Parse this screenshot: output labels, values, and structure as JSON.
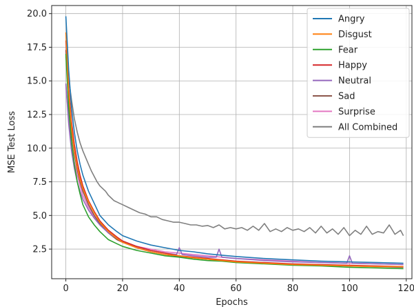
{
  "chart_data": {
    "type": "line",
    "xlabel": "Epochs",
    "ylabel": "MSE Test Loss",
    "xlim": [
      -5,
      122
    ],
    "ylim": [
      0.3,
      20.6
    ],
    "xticks": [
      0,
      20,
      40,
      60,
      80,
      100,
      120
    ],
    "yticks": [
      2.5,
      5.0,
      7.5,
      10.0,
      12.5,
      15.0,
      17.5,
      20.0
    ],
    "ytick_labels": [
      "2.5",
      "5.0",
      "7.5",
      "10.0",
      "12.5",
      "15.0",
      "17.5",
      "20.0"
    ],
    "grid": true,
    "legend_position": "top-right",
    "series": [
      {
        "name": "Angry",
        "color": "#1f77b4",
        "x": [
          0,
          1,
          2,
          3,
          4,
          5,
          6,
          8,
          10,
          12,
          15,
          18,
          20,
          25,
          30,
          35,
          40,
          45,
          50,
          55,
          60,
          70,
          80,
          90,
          100,
          110,
          119
        ],
        "y": [
          19.8,
          15.8,
          13.0,
          11.2,
          9.8,
          8.8,
          8.0,
          6.8,
          5.9,
          5.0,
          4.3,
          3.8,
          3.5,
          3.1,
          2.8,
          2.6,
          2.4,
          2.3,
          2.15,
          2.05,
          1.95,
          1.8,
          1.7,
          1.6,
          1.55,
          1.5,
          1.45
        ]
      },
      {
        "name": "Disgust",
        "color": "#ff7f0e",
        "x": [
          0,
          1,
          2,
          3,
          4,
          5,
          6,
          8,
          10,
          12,
          15,
          18,
          20,
          25,
          30,
          35,
          40,
          45,
          50,
          55,
          60,
          70,
          80,
          90,
          100,
          110,
          119
        ],
        "y": [
          18.6,
          14.2,
          11.5,
          9.8,
          8.6,
          7.7,
          7.0,
          6.0,
          5.2,
          4.5,
          3.8,
          3.3,
          3.0,
          2.6,
          2.3,
          2.1,
          2.0,
          1.85,
          1.75,
          1.65,
          1.55,
          1.45,
          1.35,
          1.3,
          1.25,
          1.2,
          1.2
        ]
      },
      {
        "name": "Fear",
        "color": "#2ca02c",
        "x": [
          0,
          1,
          2,
          3,
          4,
          5,
          6,
          8,
          10,
          12,
          15,
          18,
          20,
          25,
          30,
          35,
          40,
          45,
          50,
          55,
          60,
          70,
          80,
          90,
          100,
          110,
          119
        ],
        "y": [
          17.0,
          13.0,
          10.5,
          8.8,
          7.5,
          6.6,
          5.8,
          4.9,
          4.3,
          3.8,
          3.2,
          2.9,
          2.7,
          2.4,
          2.2,
          2.0,
          1.9,
          1.75,
          1.65,
          1.6,
          1.5,
          1.4,
          1.3,
          1.25,
          1.15,
          1.1,
          1.05
        ]
      },
      {
        "name": "Happy",
        "color": "#d62728",
        "x": [
          0,
          1,
          2,
          3,
          4,
          5,
          6,
          8,
          10,
          12,
          15,
          18,
          20,
          25,
          30,
          35,
          40,
          45,
          50,
          55,
          60,
          70,
          80,
          90,
          100,
          110,
          119
        ],
        "y": [
          18.0,
          14.5,
          12.0,
          10.3,
          9.0,
          8.0,
          7.2,
          6.1,
          5.3,
          4.6,
          3.9,
          3.4,
          3.1,
          2.7,
          2.4,
          2.2,
          2.0,
          1.9,
          1.8,
          1.7,
          1.6,
          1.5,
          1.4,
          1.35,
          1.3,
          1.25,
          1.2
        ]
      },
      {
        "name": "Neutral",
        "color": "#9467bd",
        "x": [
          0,
          1,
          2,
          3,
          4,
          5,
          6,
          8,
          10,
          12,
          15,
          18,
          20,
          25,
          30,
          35,
          39,
          40,
          41,
          45,
          50,
          53,
          54,
          55,
          60,
          70,
          80,
          90,
          99,
          100,
          101,
          110,
          119
        ],
        "y": [
          14.8,
          11.8,
          9.8,
          8.5,
          7.5,
          6.8,
          6.2,
          5.4,
          4.8,
          4.3,
          3.7,
          3.3,
          3.1,
          2.7,
          2.4,
          2.2,
          2.1,
          2.6,
          2.1,
          2.0,
          1.9,
          1.9,
          2.5,
          1.9,
          1.8,
          1.65,
          1.55,
          1.5,
          1.45,
          2.0,
          1.45,
          1.4,
          1.35
        ]
      },
      {
        "name": "Sad",
        "color": "#8c564b",
        "x": [
          0,
          1,
          2,
          3,
          4,
          5,
          6,
          8,
          10,
          12,
          15,
          18,
          20,
          25,
          30,
          35,
          40,
          45,
          50,
          55,
          60,
          70,
          80,
          90,
          100,
          110,
          119
        ],
        "y": [
          17.3,
          13.6,
          11.2,
          9.6,
          8.4,
          7.5,
          6.8,
          5.8,
          5.0,
          4.4,
          3.7,
          3.2,
          3.0,
          2.6,
          2.3,
          2.1,
          1.95,
          1.85,
          1.75,
          1.65,
          1.55,
          1.45,
          1.35,
          1.3,
          1.25,
          1.2,
          1.15
        ]
      },
      {
        "name": "Surprise",
        "color": "#e377c2",
        "x": [
          0,
          1,
          2,
          3,
          4,
          5,
          6,
          8,
          10,
          12,
          15,
          18,
          20,
          25,
          30,
          35,
          40,
          45,
          50,
          55,
          60,
          70,
          80,
          90,
          100,
          110,
          119
        ],
        "y": [
          14.7,
          12.2,
          10.4,
          9.0,
          8.0,
          7.2,
          6.5,
          5.6,
          4.9,
          4.3,
          3.7,
          3.3,
          3.0,
          2.7,
          2.5,
          2.3,
          2.2,
          2.1,
          2.0,
          1.9,
          1.8,
          1.7,
          1.6,
          1.5,
          1.45,
          1.4,
          1.35
        ]
      },
      {
        "name": "All Combined",
        "color": "#7f7f7f",
        "x": [
          0,
          1,
          2,
          3,
          4,
          5,
          6,
          7,
          8,
          9,
          10,
          11,
          12,
          13,
          14,
          15,
          16,
          17,
          18,
          19,
          20,
          22,
          24,
          26,
          28,
          30,
          32,
          34,
          36,
          38,
          40,
          42,
          44,
          46,
          48,
          50,
          52,
          54,
          56,
          58,
          60,
          62,
          64,
          66,
          68,
          70,
          72,
          74,
          76,
          78,
          80,
          82,
          84,
          86,
          88,
          90,
          92,
          94,
          96,
          98,
          100,
          102,
          104,
          106,
          108,
          110,
          112,
          114,
          116,
          118,
          119
        ],
        "y": [
          16.8,
          15.2,
          13.6,
          12.2,
          11.2,
          10.4,
          9.8,
          9.3,
          8.8,
          8.3,
          7.9,
          7.5,
          7.2,
          7.0,
          6.8,
          6.5,
          6.3,
          6.1,
          6.0,
          5.9,
          5.8,
          5.6,
          5.4,
          5.2,
          5.1,
          4.9,
          4.9,
          4.7,
          4.6,
          4.5,
          4.5,
          4.4,
          4.3,
          4.3,
          4.2,
          4.25,
          4.1,
          4.3,
          4.0,
          4.1,
          4.0,
          4.1,
          3.9,
          4.2,
          3.9,
          4.4,
          3.8,
          4.0,
          3.8,
          4.1,
          3.9,
          4.0,
          3.8,
          4.1,
          3.7,
          4.2,
          3.7,
          4.0,
          3.6,
          4.1,
          3.5,
          3.9,
          3.6,
          4.2,
          3.6,
          3.8,
          3.7,
          4.3,
          3.6,
          3.9,
          3.5
        ]
      }
    ]
  }
}
